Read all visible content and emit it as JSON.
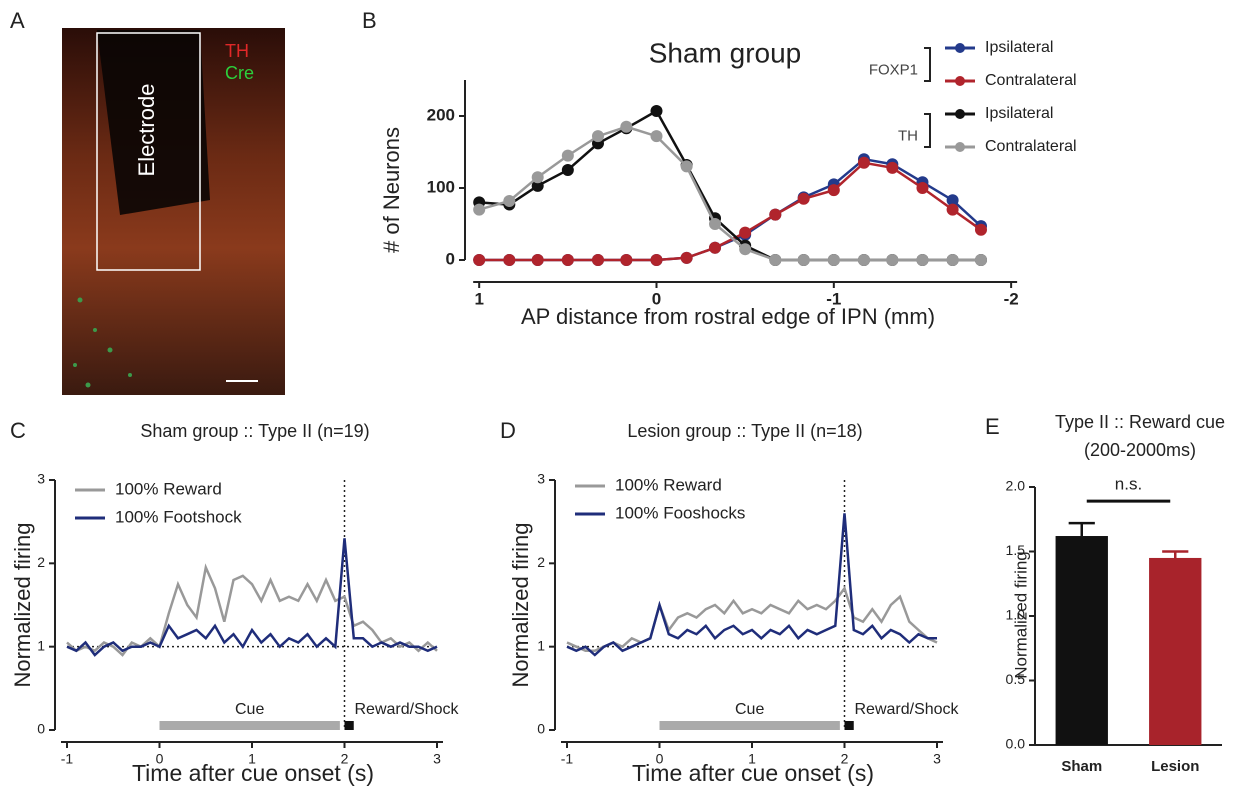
{
  "panels": {
    "labels": [
      "A",
      "B",
      "C",
      "D",
      "E"
    ]
  },
  "image": {
    "labels": [
      "TH",
      "Cre",
      "Electrode"
    ]
  },
  "chart_data": [
    {
      "type": "line",
      "title": "Sham group",
      "xlabel": "AP distance from rostral edge of IPN (mm)",
      "ylabel": "# of Neurons",
      "x": [
        1,
        0.83,
        0.67,
        0.5,
        0.33,
        0.17,
        0,
        -0.17,
        -0.33,
        -0.5,
        -0.67,
        -0.83,
        -1,
        -1.17,
        -1.33,
        -1.5,
        -1.67,
        -1.83
      ],
      "xlim": [
        1.08,
        -2.05
      ],
      "xticks": [
        1,
        0,
        -1,
        -2
      ],
      "ylim": [
        0,
        250
      ],
      "yticks": [
        0,
        100,
        200
      ],
      "markers": true,
      "series": [
        {
          "name": "Ipsilateral",
          "group": "FOXP1",
          "color": "#233a8b",
          "values": [
            0,
            0,
            0,
            0,
            0,
            0,
            0,
            3,
            17,
            35,
            63,
            87,
            105,
            140,
            133,
            108,
            83,
            47
          ]
        },
        {
          "name": "Contralateral",
          "group": "FOXP1",
          "color": "#b0242c",
          "values": [
            0,
            0,
            0,
            0,
            0,
            0,
            0,
            3,
            17,
            38,
            63,
            85,
            97,
            135,
            128,
            100,
            70,
            42
          ]
        },
        {
          "name": "Ipsilateral",
          "group": "TH",
          "color": "#111111",
          "values": [
            80,
            77,
            103,
            125,
            162,
            183,
            207,
            132,
            58,
            20,
            0,
            0,
            0,
            0,
            0,
            0,
            0,
            0
          ]
        },
        {
          "name": "Contralateral",
          "group": "TH",
          "color": "#999999",
          "values": [
            70,
            82,
            115,
            145,
            172,
            185,
            172,
            130,
            50,
            15,
            0,
            0,
            0,
            0,
            0,
            0,
            0,
            0
          ]
        }
      ]
    },
    {
      "type": "line",
      "title": "Sham group :: Type II (n=19)",
      "xlabel": "Time after cue onset (s)",
      "ylabel": "Normalized firing",
      "x": [
        -1,
        -0.9,
        -0.8,
        -0.7,
        -0.6,
        -0.5,
        -0.4,
        -0.3,
        -0.2,
        -0.1,
        0,
        0.1,
        0.2,
        0.3,
        0.4,
        0.5,
        0.6,
        0.7,
        0.8,
        0.9,
        1,
        1.1,
        1.2,
        1.3,
        1.4,
        1.5,
        1.6,
        1.7,
        1.8,
        1.9,
        2,
        2.1,
        2.2,
        2.3,
        2.4,
        2.5,
        2.6,
        2.7,
        2.8,
        2.9,
        3
      ],
      "xlim": [
        -1,
        3
      ],
      "xticks": [
        -1,
        0,
        1,
        2,
        3
      ],
      "ylim": [
        0,
        3
      ],
      "yticks": [
        0,
        1,
        2,
        3
      ],
      "hline": 1,
      "vline": 2,
      "spans": [
        {
          "label": "Cue",
          "x": [
            0,
            1.95
          ]
        },
        {
          "label": "Reward/Shock",
          "x": [
            2,
            2.1
          ]
        }
      ],
      "series": [
        {
          "name": "100% Reward",
          "color": "#999999",
          "values": [
            1.05,
            0.95,
            1.0,
            0.95,
            1.05,
            1.0,
            0.9,
            1.05,
            1.0,
            1.1,
            1.0,
            1.4,
            1.75,
            1.5,
            1.35,
            1.95,
            1.7,
            1.3,
            1.8,
            1.85,
            1.75,
            1.55,
            1.8,
            1.55,
            1.6,
            1.55,
            1.75,
            1.55,
            1.8,
            1.55,
            1.6,
            1.25,
            1.3,
            1.2,
            1.05,
            1.1,
            1.0,
            1.05,
            0.95,
            1.05,
            0.95
          ]
        },
        {
          "name": "100% Footshock",
          "color": "#1f2d7a",
          "values": [
            1.0,
            0.95,
            1.05,
            0.9,
            1.0,
            1.05,
            0.95,
            1.0,
            1.0,
            1.05,
            1.0,
            1.25,
            1.1,
            1.15,
            1.2,
            1.1,
            1.25,
            1.05,
            1.15,
            1.0,
            1.2,
            1.05,
            1.15,
            1.0,
            1.1,
            1.05,
            1.15,
            1.0,
            1.1,
            1.0,
            2.3,
            1.1,
            1.1,
            1.0,
            1.05,
            1.0,
            1.05,
            1.0,
            1.0,
            0.95,
            1.0
          ]
        }
      ]
    },
    {
      "type": "line",
      "title": "Lesion group :: Type II (n=18)",
      "xlabel": "Time after cue onset (s)",
      "ylabel": "Normalized firing",
      "x": [
        -1,
        -0.9,
        -0.8,
        -0.7,
        -0.6,
        -0.5,
        -0.4,
        -0.3,
        -0.2,
        -0.1,
        0,
        0.1,
        0.2,
        0.3,
        0.4,
        0.5,
        0.6,
        0.7,
        0.8,
        0.9,
        1,
        1.1,
        1.2,
        1.3,
        1.4,
        1.5,
        1.6,
        1.7,
        1.8,
        1.9,
        2,
        2.1,
        2.2,
        2.3,
        2.4,
        2.5,
        2.6,
        2.7,
        2.8,
        2.9,
        3
      ],
      "xlim": [
        -1,
        3
      ],
      "xticks": [
        -1,
        0,
        1,
        2,
        3
      ],
      "ylim": [
        0,
        3
      ],
      "yticks": [
        0,
        1,
        2,
        3
      ],
      "hline": 1,
      "vline": 2,
      "spans": [
        {
          "label": "Cue",
          "x": [
            0,
            1.95
          ]
        },
        {
          "label": "Reward/Shock",
          "x": [
            2,
            2.1
          ]
        }
      ],
      "series": [
        {
          "name": "100% Reward",
          "color": "#999999",
          "values": [
            1.05,
            1.0,
            0.95,
            0.95,
            1.0,
            1.05,
            1.0,
            1.1,
            1.05,
            1.1,
            1.5,
            1.2,
            1.35,
            1.4,
            1.35,
            1.45,
            1.5,
            1.4,
            1.55,
            1.4,
            1.45,
            1.4,
            1.5,
            1.45,
            1.4,
            1.55,
            1.45,
            1.5,
            1.45,
            1.55,
            1.7,
            1.35,
            1.3,
            1.45,
            1.3,
            1.5,
            1.6,
            1.3,
            1.2,
            1.1,
            1.05
          ]
        },
        {
          "name": "100% Fooshocks",
          "color": "#1f2d7a",
          "values": [
            1.0,
            0.95,
            1.0,
            0.9,
            1.0,
            1.05,
            0.95,
            1.0,
            1.05,
            1.1,
            1.5,
            1.15,
            1.1,
            1.2,
            1.15,
            1.25,
            1.1,
            1.2,
            1.25,
            1.15,
            1.2,
            1.1,
            1.2,
            1.15,
            1.25,
            1.1,
            1.2,
            1.15,
            1.2,
            1.25,
            2.6,
            1.2,
            1.15,
            1.25,
            1.1,
            1.2,
            1.15,
            1.05,
            1.15,
            1.1,
            1.1
          ]
        }
      ]
    },
    {
      "type": "bar",
      "title": "Type II :: Reward cue",
      "subtitle": "(200-2000ms)",
      "ylabel": "Normalized firing",
      "categories": [
        "Sham",
        "Lesion"
      ],
      "values": [
        1.62,
        1.45
      ],
      "errors": [
        0.1,
        0.05
      ],
      "colors": [
        "#111111",
        "#a8232b"
      ],
      "ylim": [
        0,
        2
      ],
      "yticks": [
        {
          "value": 0,
          "label": "0.0"
        },
        0.5,
        {
          "value": 1,
          "label": "1.0"
        },
        1.5,
        {
          "value": 2,
          "label": "2.0"
        }
      ],
      "annotation": "n.s."
    }
  ]
}
